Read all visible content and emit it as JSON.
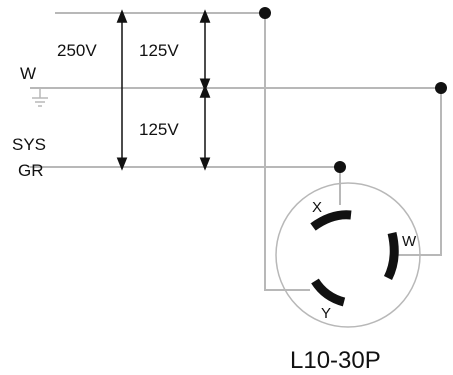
{
  "labels": {
    "w_line": "W",
    "sys_gr_line1": "SYS",
    "sys_gr_line2": "GR",
    "volt_250": "250V",
    "volt_125_top": "125V",
    "volt_125_bottom": "125V",
    "terminal_x": "X",
    "terminal_y": "Y",
    "terminal_w": "W",
    "plug_model": "L10-30P"
  },
  "colors": {
    "wire": "#b8b8b8",
    "ink": "#111111",
    "background": "#ffffff"
  }
}
